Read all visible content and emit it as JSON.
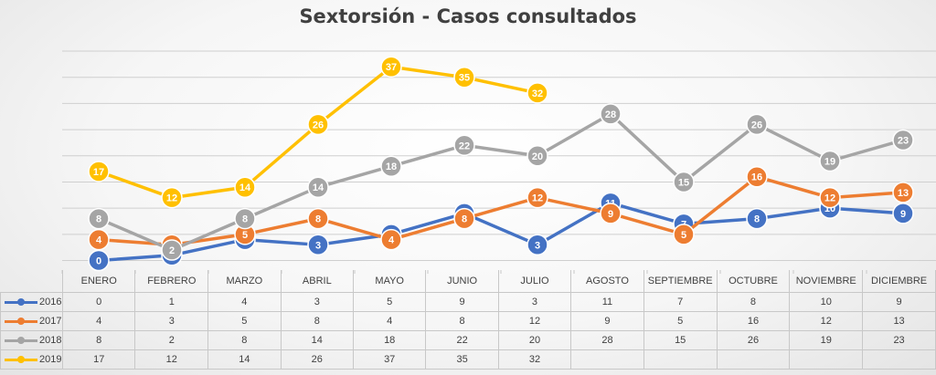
{
  "chart_data": {
    "type": "line",
    "title": "Sextorsión - Casos consultados",
    "categories": [
      "ENERO",
      "FEBRERO",
      "MARZO",
      "ABRIL",
      "MAYO",
      "JUNIO",
      "JULIO",
      "AGOSTO",
      "SEPTIEMBRE",
      "OCTUBRE",
      "NOVIEMBRE",
      "DICIEMBRE"
    ],
    "ylim": [
      -2,
      40
    ],
    "grid": true,
    "legend": "data-table",
    "series": [
      {
        "name": "2016",
        "color": "#4472c4",
        "values": [
          0,
          1,
          4,
          3,
          5,
          9,
          3,
          11,
          7,
          8,
          10,
          9
        ]
      },
      {
        "name": "2017",
        "color": "#ed7d31",
        "values": [
          4,
          3,
          5,
          8,
          4,
          8,
          12,
          9,
          5,
          16,
          12,
          13
        ]
      },
      {
        "name": "2018",
        "color": "#a5a5a5",
        "values": [
          8,
          2,
          8,
          14,
          18,
          22,
          20,
          28,
          15,
          26,
          19,
          23
        ]
      },
      {
        "name": "2019",
        "color": "#ffc000",
        "values": [
          17,
          12,
          14,
          26,
          37,
          35,
          32,
          null,
          null,
          null,
          null,
          null
        ]
      }
    ]
  }
}
